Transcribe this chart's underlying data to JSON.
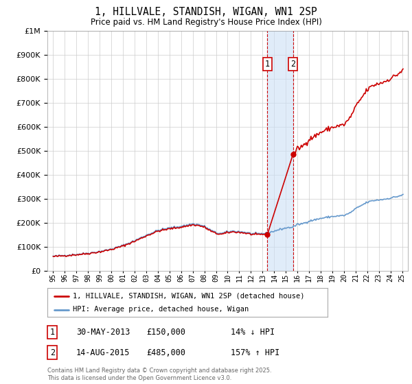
{
  "title": "1, HILLVALE, STANDISH, WIGAN, WN1 2SP",
  "subtitle": "Price paid vs. HM Land Registry's House Price Index (HPI)",
  "legend_line1": "1, HILLVALE, STANDISH, WIGAN, WN1 2SP (detached house)",
  "legend_line2": "HPI: Average price, detached house, Wigan",
  "sale1_label": "1",
  "sale1_date": "30-MAY-2013",
  "sale1_price": "£150,000",
  "sale1_hpi": "14% ↓ HPI",
  "sale1_year": 2013.41,
  "sale1_value": 150000,
  "sale2_label": "2",
  "sale2_date": "14-AUG-2015",
  "sale2_price": "£485,000",
  "sale2_hpi": "157% ↑ HPI",
  "sale2_year": 2015.62,
  "sale2_value": 485000,
  "property_color": "#cc0000",
  "hpi_color": "#6699cc",
  "shade_color": "#cce0f5",
  "shade_alpha": 0.6,
  "ylim_min": 0,
  "ylim_max": 1000000,
  "xlim_min": 1994.5,
  "xlim_max": 2025.5,
  "background_color": "#ffffff",
  "grid_color": "#cccccc",
  "footer": "Contains HM Land Registry data © Crown copyright and database right 2025.\nThis data is licensed under the Open Government Licence v3.0."
}
